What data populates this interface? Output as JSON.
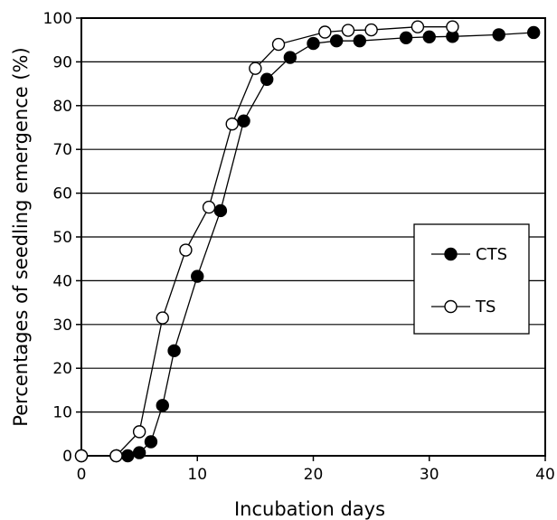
{
  "chart_data": {
    "type": "line",
    "xlabel": "Incubation days",
    "ylabel": "Percentages of seedling emergence (%)",
    "xlim": [
      0,
      40
    ],
    "ylim": [
      0,
      100
    ],
    "xticks": [
      0,
      10,
      20,
      30,
      40
    ],
    "yticks": [
      0,
      10,
      20,
      30,
      40,
      50,
      60,
      70,
      80,
      90,
      100
    ],
    "grid": "horizontal",
    "legend_position": "right-middle",
    "series": [
      {
        "name": "CTS",
        "marker": "filled-circle",
        "color": "#000000",
        "x": [
          0,
          3,
          4,
          5,
          6,
          7,
          8,
          10,
          12,
          14,
          16,
          18,
          20,
          22,
          24,
          28,
          30,
          32,
          36,
          39
        ],
        "y": [
          0,
          0,
          0,
          0.7,
          3.2,
          11.5,
          24,
          41,
          56,
          76.5,
          86,
          91,
          94.2,
          94.8,
          94.8,
          95.5,
          95.7,
          95.8,
          96.2,
          96.7
        ]
      },
      {
        "name": "TS",
        "marker": "open-circle",
        "color": "#000000",
        "x": [
          0,
          3,
          5,
          7,
          9,
          11,
          13,
          15,
          17,
          21,
          23,
          25,
          29,
          32
        ],
        "y": [
          0,
          0,
          5.5,
          31.5,
          47,
          56.8,
          75.8,
          88.5,
          94,
          96.8,
          97.2,
          97.3,
          98,
          98
        ]
      }
    ]
  }
}
